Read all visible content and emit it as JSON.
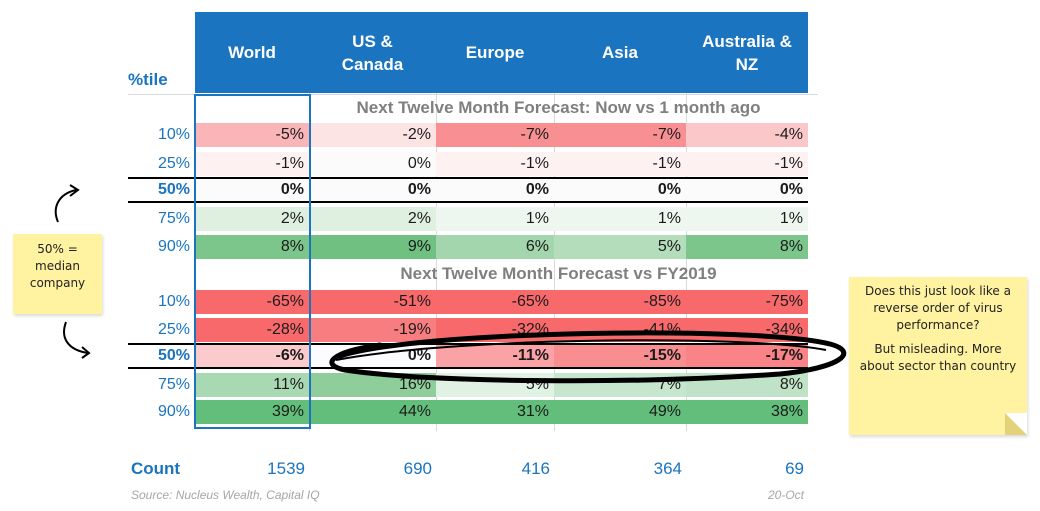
{
  "table": {
    "percentile_header": "%tile",
    "columns": [
      "World",
      "US &\nCanada",
      "Europe",
      "Asia",
      "Australia &\nNZ"
    ],
    "section1_title": "Next Twelve Month Forecast: Now vs 1 month ago",
    "section2_title": "Next Twelve Month Forecast vs FY2019",
    "section1_rows": [
      {
        "pct": "10%",
        "values": [
          "-5%",
          "-2%",
          "-7%",
          "-7%",
          "-4%"
        ],
        "colors": [
          "#f9b5b8",
          "#fce4e5",
          "#f88f93",
          "#f88f93",
          "#fbc8ca"
        ]
      },
      {
        "pct": "25%",
        "values": [
          "-1%",
          "0%",
          "-1%",
          "-1%",
          "-1%"
        ],
        "colors": [
          "#fdf1f2",
          "#fbfbfc",
          "#fdf1f2",
          "#fdf1f2",
          "#fdf1f2"
        ]
      },
      {
        "pct": "50%",
        "values": [
          "0%",
          "0%",
          "0%",
          "0%",
          "0%"
        ],
        "colors": [
          "#fbfbfc",
          "#fbfbfc",
          "#fbfbfc",
          "#fbfbfc",
          "#fbfbfc"
        ]
      },
      {
        "pct": "75%",
        "values": [
          "2%",
          "2%",
          "1%",
          "1%",
          "1%"
        ],
        "colors": [
          "#dff0e1",
          "#dff0e1",
          "#eef7ef",
          "#eef7ef",
          "#eef7ef"
        ]
      },
      {
        "pct": "90%",
        "values": [
          "8%",
          "9%",
          "6%",
          "5%",
          "8%"
        ],
        "colors": [
          "#7cc68c",
          "#6fc081",
          "#a3d6ad",
          "#b4ddbc",
          "#7cc68c"
        ]
      }
    ],
    "section2_rows": [
      {
        "pct": "10%",
        "values": [
          "-65%",
          "-51%",
          "-65%",
          "-85%",
          "-75%"
        ],
        "colors": [
          "#f8696b",
          "#f8696b",
          "#f8696b",
          "#f8696b",
          "#f8696b"
        ]
      },
      {
        "pct": "25%",
        "values": [
          "-28%",
          "-19%",
          "-32%",
          "-41%",
          "-34%"
        ],
        "colors": [
          "#f8696b",
          "#f87d80",
          "#f8696b",
          "#f8696b",
          "#f8696b"
        ]
      },
      {
        "pct": "50%",
        "values": [
          "-6%",
          "0%",
          "-11%",
          "-15%",
          "-17%"
        ],
        "colors": [
          "#fbcacc",
          "#fcfcff",
          "#faa2a5",
          "#f98e91",
          "#f98386"
        ]
      },
      {
        "pct": "75%",
        "values": [
          "11%",
          "16%",
          "5%",
          "7%",
          "8%"
        ],
        "colors": [
          "#a9d9b2",
          "#8fcd9b",
          "#e0f2e4",
          "#c7e6ce",
          "#c0e3c7"
        ]
      },
      {
        "pct": "90%",
        "values": [
          "39%",
          "44%",
          "31%",
          "49%",
          "38%"
        ],
        "colors": [
          "#63be7b",
          "#63be7b",
          "#63be7b",
          "#63be7b",
          "#63be7b"
        ]
      }
    ],
    "count_label": "Count",
    "counts": [
      "1539",
      "690",
      "416",
      "364",
      "69"
    ],
    "source": "Source: Nucleus Wealth, Capital IQ",
    "date": "20-Oct"
  },
  "notes": {
    "left": "50% =\nmedian\ncompany",
    "right_p1": "Does this just look like a reverse order of virus performance?",
    "right_p2": "But misleading. More about sector than country"
  }
}
